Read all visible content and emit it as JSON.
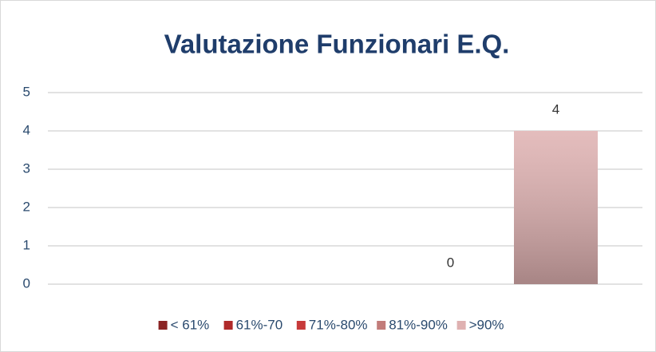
{
  "chart_data": {
    "type": "bar",
    "title": "Valutazione Funzionari E.Q.",
    "categories": [
      null
    ],
    "series": [
      {
        "name": "< 61%",
        "color": "#8b2424",
        "values": [
          null
        ]
      },
      {
        "name": "61%-70",
        "color": "#b02a2a",
        "values": [
          null
        ]
      },
      {
        "name": "71%-80%",
        "color": "#c73a3a",
        "values": [
          null
        ]
      },
      {
        "name": "81%-90%",
        "color": "#c27c7a",
        "values": [
          0
        ]
      },
      {
        "name": ">90%",
        "color": "#dfb1b1",
        "values": [
          4
        ]
      }
    ],
    "ylim": [
      0,
      5
    ],
    "yticks": [
      0,
      1,
      2,
      3,
      4,
      5
    ],
    "grid": true,
    "legend": "bottom"
  }
}
